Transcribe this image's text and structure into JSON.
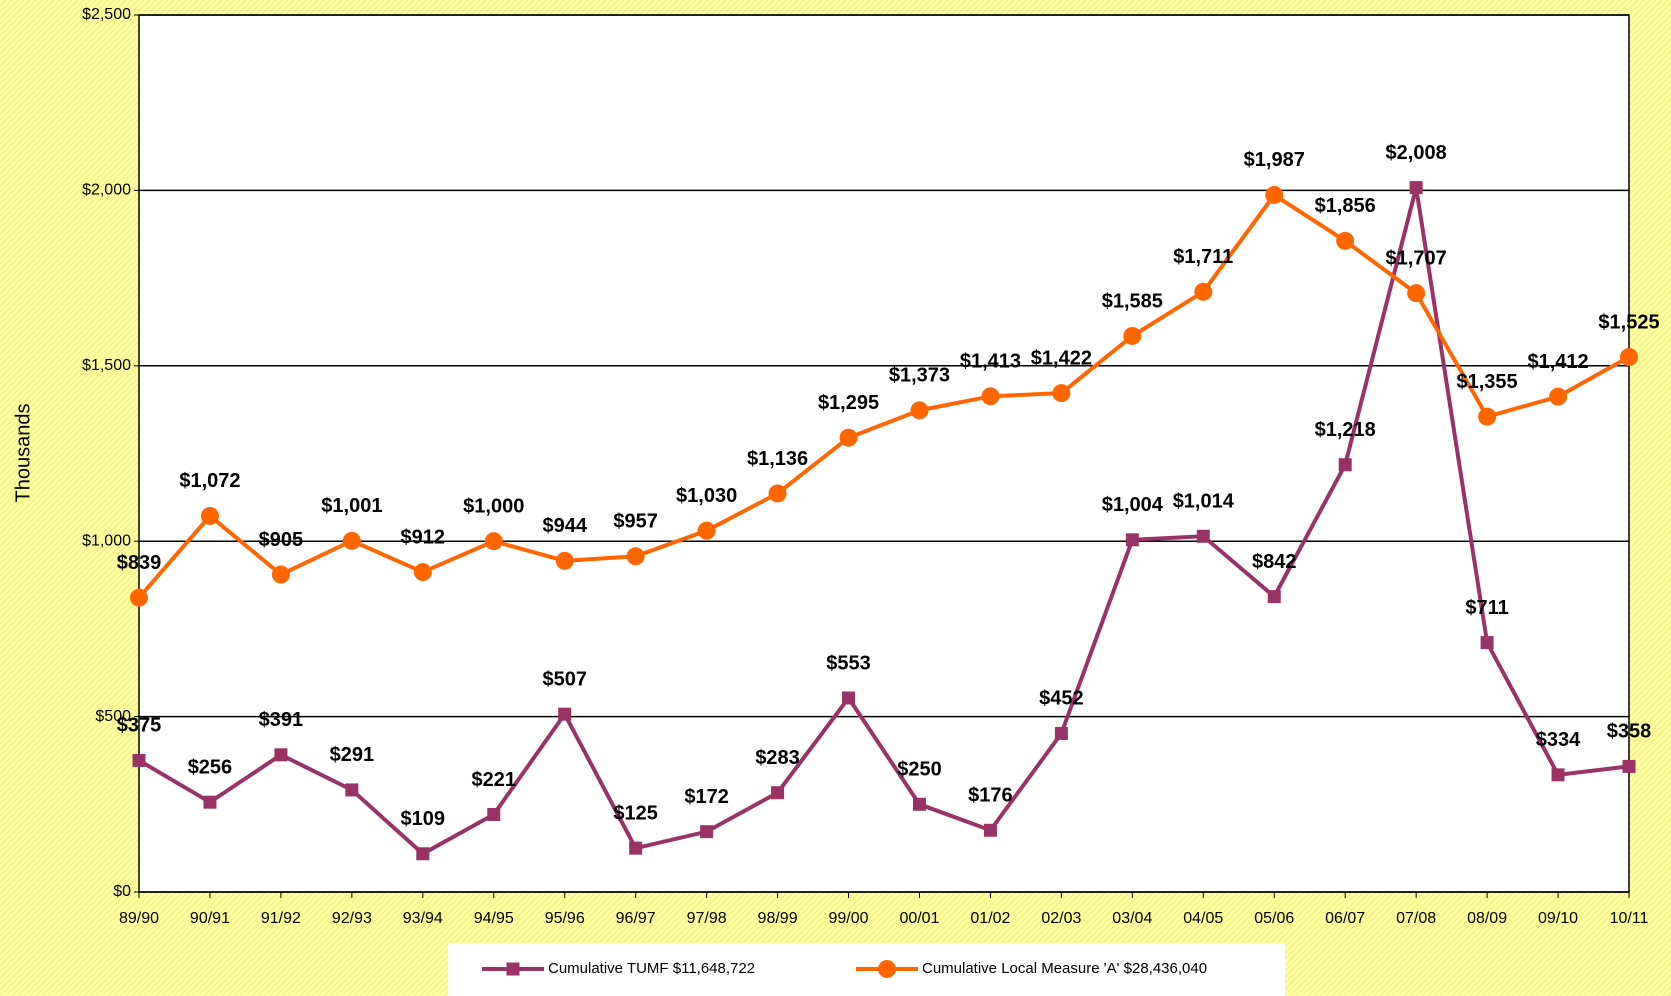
{
  "chart_data": {
    "type": "line",
    "y_label": "Thousands",
    "categories": [
      "89/90",
      "90/91",
      "91/92",
      "92/93",
      "93/94",
      "94/95",
      "95/96",
      "96/97",
      "97/98",
      "98/99",
      "99/00",
      "00/01",
      "01/02",
      "02/03",
      "03/04",
      "04/05",
      "05/06",
      "06/07",
      "07/08",
      "08/09",
      "09/10",
      "10/11"
    ],
    "series": [
      {
        "name": "Cumulative TUMF $11,648,722",
        "color": "#993366",
        "marker": "square",
        "values": [
          375,
          256,
          391,
          291,
          109,
          221,
          507,
          125,
          172,
          283,
          553,
          250,
          176,
          452,
          1004,
          1014,
          842,
          1218,
          2008,
          711,
          334,
          358
        ],
        "value_labels": [
          "$375",
          "$256",
          "$391",
          "$291",
          "$109",
          "$221",
          "$507",
          "$125",
          "$172",
          "$283",
          "$553",
          "$250",
          "$176",
          "$452",
          "$1,004",
          "$1,014",
          "$842",
          "$1,218",
          "$2,008",
          "$711",
          "$334",
          "$358"
        ]
      },
      {
        "name": "Cumulative Local Measure 'A' $28,436,040",
        "color": "#ff6600",
        "marker": "circle",
        "values": [
          839,
          1072,
          905,
          1001,
          912,
          1000,
          944,
          957,
          1030,
          1136,
          1295,
          1373,
          1413,
          1422,
          1585,
          1711,
          1987,
          1856,
          1707,
          1355,
          1412,
          1525
        ],
        "value_labels": [
          "$839",
          "$1,072",
          "$905",
          "$1,001",
          "$912",
          "$1,000",
          "$944",
          "$957",
          "$1,030",
          "$1,136",
          "$1,295",
          "$1,373",
          "$1,413",
          "$1,422",
          "$1,585",
          "$1,711",
          "$1,987",
          "$1,856",
          "$1,707",
          "$1,355",
          "$1,412",
          "$1,525"
        ]
      }
    ],
    "ylim": [
      0,
      2500
    ],
    "yticks": [
      {
        "value": 0,
        "label": "$0"
      },
      {
        "value": 500,
        "label": "$500"
      },
      {
        "value": 1000,
        "label": "$1,000"
      },
      {
        "value": 1500,
        "label": "$1,500"
      },
      {
        "value": 2000,
        "label": "$2,000"
      },
      {
        "value": 2500,
        "label": "$2,500"
      }
    ],
    "grid": true,
    "legend": "bottom"
  }
}
